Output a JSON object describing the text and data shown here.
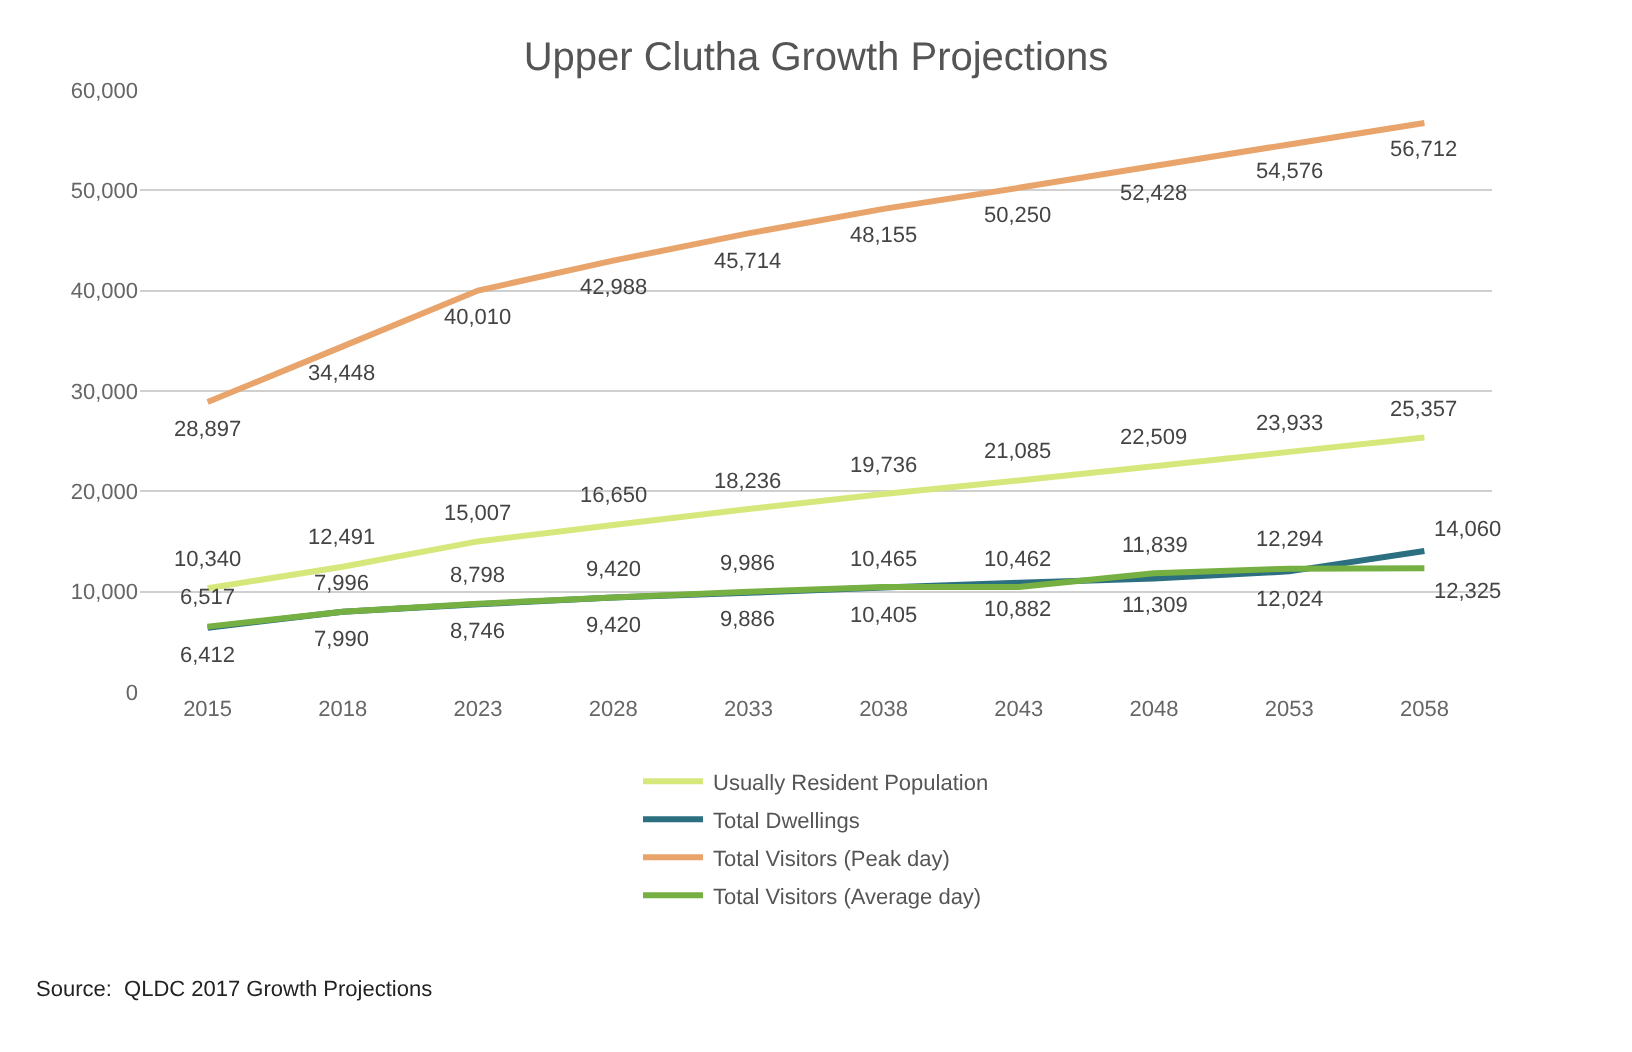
{
  "chart_data": {
    "type": "line",
    "title": "Upper Clutha Growth Projections",
    "categories": [
      "2015",
      "2018",
      "2023",
      "2028",
      "2033",
      "2038",
      "2043",
      "2048",
      "2053",
      "2058"
    ],
    "series": [
      {
        "name": "Usually Resident Population",
        "color": "#d6e87c",
        "values": [
          10340,
          12491,
          15007,
          16650,
          18236,
          19736,
          21085,
          22509,
          23933,
          25357
        ],
        "value_labels": [
          "10,340",
          "12,491",
          "15,007",
          "16,650",
          "18,236",
          "19,736",
          "21,085",
          "22,509",
          "23,933",
          "25,357"
        ]
      },
      {
        "name": "Total Dwellings",
        "color": "#2b6f80",
        "values": [
          6412,
          7990,
          8746,
          9420,
          9886,
          10405,
          10882,
          11309,
          12024,
          14060
        ],
        "value_labels": [
          "6,412",
          "7,990",
          "8,746",
          "9,420",
          "9,886",
          "10,405",
          "10,882",
          "11,309",
          "12,024",
          "14,060"
        ]
      },
      {
        "name": "Total Visitors (Peak day)",
        "color": "#e8a46a",
        "values": [
          28897,
          34448,
          40010,
          42988,
          45714,
          48155,
          50250,
          52428,
          54576,
          56712
        ],
        "value_labels": [
          "28,897",
          "34,448",
          "40,010",
          "42,988",
          "45,714",
          "48,155",
          "50,250",
          "52,428",
          "54,576",
          "56,712"
        ]
      },
      {
        "name": "Total Visitors (Average day)",
        "color": "#76b042",
        "values": [
          6517,
          7996,
          8798,
          9420,
          9986,
          10465,
          10462,
          11839,
          12294,
          12325
        ],
        "value_labels": [
          "6,517",
          "7,996",
          "8,798",
          "9,420",
          "9,986",
          "10,465",
          "10,462",
          "11,839",
          "12,294",
          "12,325"
        ]
      }
    ],
    "ylim": [
      0,
      60000
    ],
    "yticks": [
      {
        "value": 0,
        "label": "0"
      },
      {
        "value": 10000,
        "label": "10,000"
      },
      {
        "value": 20000,
        "label": "20,000"
      },
      {
        "value": 30000,
        "label": "30,000"
      },
      {
        "value": 40000,
        "label": "40,000"
      },
      {
        "value": 50000,
        "label": "50,000"
      },
      {
        "value": 60000,
        "label": "60,000"
      }
    ],
    "grid": "y",
    "legend": "bottom",
    "marker": "none",
    "line_style": "solid",
    "annotations": [
      "Source:  QLDC 2017 Growth Projections"
    ]
  }
}
